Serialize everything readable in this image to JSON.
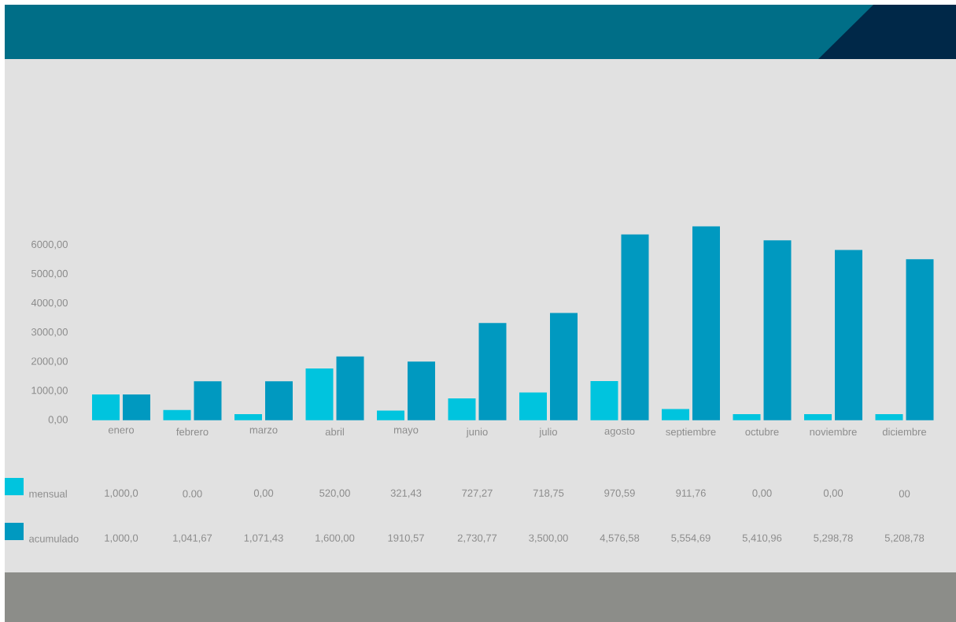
{
  "chart_data": {
    "type": "bar",
    "categories": [
      "enero",
      "febrero",
      "marzo",
      "abril",
      "mayo",
      "junio",
      "julio",
      "agosto",
      "septiembre",
      "octubre",
      "noviembre",
      "diciembre"
    ],
    "series": [
      {
        "name": "mensual",
        "color": "#00c4de",
        "values": [
          880,
          350,
          210,
          1770,
          330,
          750,
          950,
          1340,
          380,
          210,
          210,
          210
        ]
      },
      {
        "name": "acumulado",
        "color": "#0099c0",
        "values": [
          880,
          1330,
          1330,
          2180,
          2010,
          3330,
          3670,
          6360,
          6640,
          6160,
          5830,
          5510
        ]
      }
    ],
    "ylim": [
      0,
      6640
    ],
    "yticks": [
      {
        "value": 0,
        "label": "0,00"
      },
      {
        "value": 1000,
        "label": "1000,00"
      },
      {
        "value": 2000,
        "label": "2000,00"
      },
      {
        "value": 3000,
        "label": "3000,00"
      },
      {
        "value": 4000,
        "label": "4000,00"
      },
      {
        "value": 5000,
        "label": "5000,00"
      },
      {
        "value": 6000,
        "label": "6000,00"
      }
    ],
    "annotations": [
      "1,000,0",
      "0.00",
      "0,00",
      "520,00",
      "321,43",
      "727,27",
      "718,75",
      "970,59",
      "911,76",
      "0,00",
      "0,00",
      "00",
      "1,000,0",
      "1,041,67",
      "1,071,43",
      "1,600,00",
      "1910,57",
      "2,730,77",
      "3,500,00",
      "4,576,58",
      "5,554,69",
      "5,410,96",
      "5,298,78",
      "5,208,78"
    ],
    "legend": "bottom left",
    "grid": false
  }
}
